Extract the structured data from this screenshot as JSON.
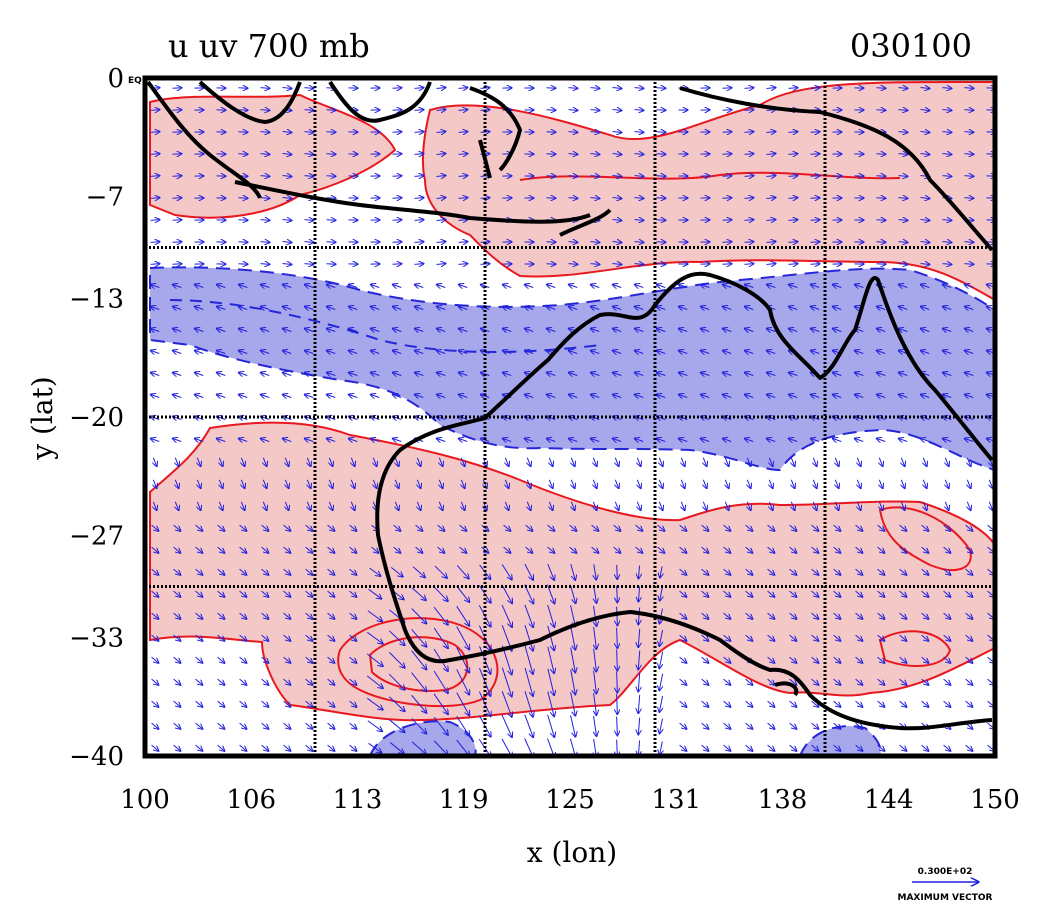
{
  "chart_data": {
    "type": "contour",
    "title_left": "u uv 700 mb",
    "title_right": "030100",
    "xlabel": "x (lon)",
    "ylabel": "y (lat)",
    "xlim": [
      100,
      150
    ],
    "ylim": [
      -40,
      0
    ],
    "x_ticks": [
      "100",
      "106",
      "113",
      "119",
      "125",
      "131",
      "138",
      "144",
      "150"
    ],
    "y_ticks": [
      "0",
      "-7",
      "-13",
      "-20",
      "-27",
      "-33",
      "-40"
    ],
    "y_tick_values": [
      0,
      -7,
      -13,
      -20,
      -27,
      -33,
      -40
    ],
    "equator_label": "EQ",
    "gridlines_lon": [
      110,
      120,
      130,
      140
    ],
    "gridlines_lat": [
      -10,
      -20,
      -30
    ],
    "legend": {
      "vector_value": "0.300E+02",
      "vector_label": "MAXIMUM VECTOR"
    },
    "colors": {
      "positive_fill": "#f5c8c8",
      "positive_line": "#e8181f",
      "negative_fill": "#a7a7ec",
      "negative_line": "#2626d9",
      "vector": "#2020e0",
      "coast": "#000000"
    },
    "regions": {
      "positive": [
        {
          "name": "north-westerly band",
          "lon": [
            100,
            150
          ],
          "lat": [
            -12,
            0
          ]
        },
        {
          "name": "southern westerly band",
          "lon": [
            100,
            150
          ],
          "lat": [
            -38,
            -20
          ]
        }
      ],
      "negative": [
        {
          "name": "tropical easterly band",
          "lon": [
            100,
            150
          ],
          "lat": [
            -22,
            -11
          ]
        },
        {
          "name": "southern easterly patch west",
          "lon": [
            114,
            119
          ],
          "lat": [
            -40,
            -38
          ]
        },
        {
          "name": "southern easterly patch east",
          "lon": [
            140,
            144
          ],
          "lat": [
            -40,
            -38
          ]
        }
      ]
    }
  }
}
